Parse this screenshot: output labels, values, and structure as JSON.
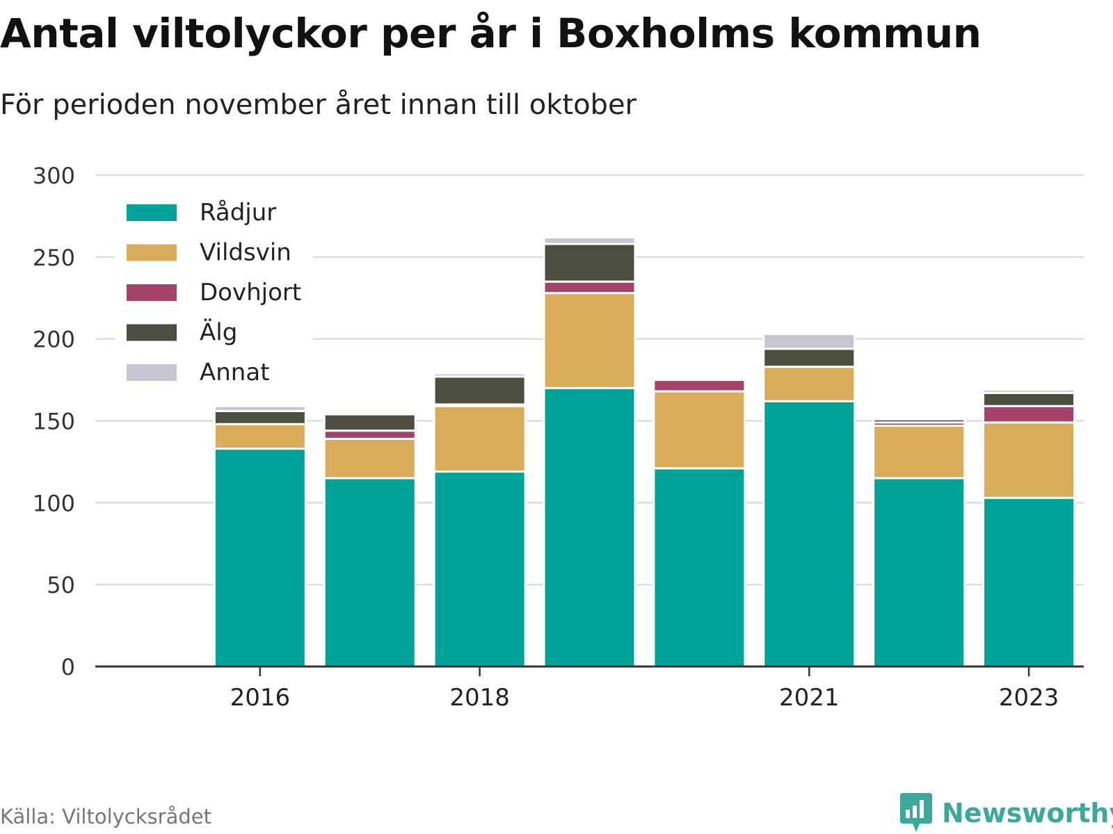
{
  "title": "Antal viltolyckor per år i Boxholms kommun",
  "subtitle": "För perioden november året innan till oktober",
  "source": "Källa: Viltolycksrådet",
  "brand": "Newsworthy",
  "colors": {
    "grid": "#dddddd",
    "axis": "#333333",
    "background": "#ffffff"
  },
  "chart_data": {
    "type": "bar",
    "stacked": true,
    "categories": [
      "2015",
      "2016",
      "2017",
      "2018",
      "2019",
      "2020",
      "2021",
      "2022",
      "2023"
    ],
    "x_tick_labels": [
      "2016",
      "2018",
      "2021",
      "2023"
    ],
    "ylim": [
      0,
      300
    ],
    "y_ticks": [
      0,
      50,
      100,
      150,
      200,
      250,
      300
    ],
    "grid": true,
    "legend_position": "top-left",
    "series": [
      {
        "name": "Rådjur",
        "color": "#00a397",
        "values": [
          0,
          133,
          115,
          119,
          170,
          121,
          162,
          115,
          103
        ]
      },
      {
        "name": "Vildsvin",
        "color": "#d9ac5a",
        "values": [
          0,
          15,
          24,
          40,
          58,
          47,
          21,
          32,
          46
        ]
      },
      {
        "name": "Dovhjort",
        "color": "#a5426a",
        "values": [
          0,
          0,
          5,
          1,
          7,
          7,
          0,
          2,
          10
        ]
      },
      {
        "name": "Älg",
        "color": "#4d4d40",
        "values": [
          0,
          8,
          10,
          17,
          23,
          1,
          11,
          2,
          8
        ]
      },
      {
        "name": "Annat",
        "color": "#c8c6d2",
        "values": [
          0,
          3,
          1,
          2,
          4,
          1,
          9,
          1,
          2
        ]
      }
    ]
  }
}
